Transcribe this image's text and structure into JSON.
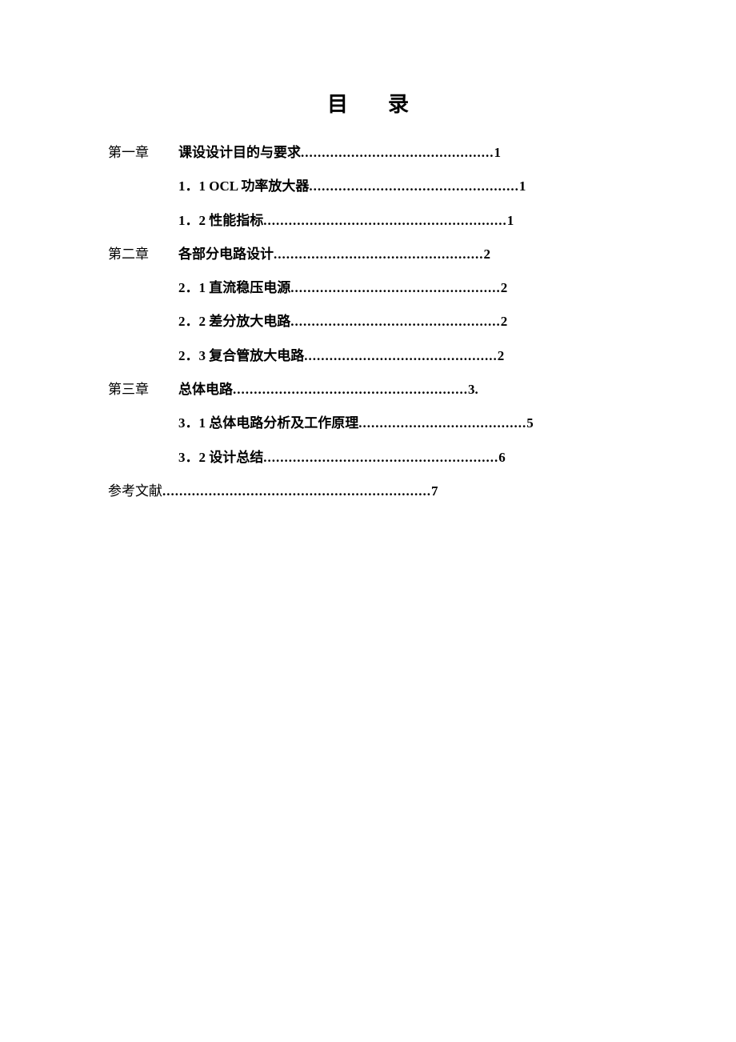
{
  "title": {
    "char1": "目",
    "char2": "录"
  },
  "entries": [
    {
      "chapter": "第一章",
      "text": "课设设计目的与要求",
      "page": "1",
      "leader_len": 46,
      "sub": false
    },
    {
      "chapter": "",
      "text": "1．1 OCL 功率放大器",
      "page": "1",
      "leader_len": 50,
      "sub": true
    },
    {
      "chapter": "",
      "text": "1．2 性能指标",
      "page": "1",
      "leader_len": 58,
      "sub": true
    },
    {
      "chapter": "第二章",
      "text": "各部分电路设计",
      "page": "2",
      "leader_len": 50,
      "sub": false
    },
    {
      "chapter": "",
      "text": "2．1 直流稳压电源",
      "page": "2",
      "leader_len": 50,
      "sub": true
    },
    {
      "chapter": "",
      "text": "2．2 差分放大电路",
      "page": "2",
      "leader_len": 50,
      "sub": true
    },
    {
      "chapter": "",
      "text": "2．3 复合管放大电路",
      "page": "2",
      "leader_len": 46,
      "sub": true
    },
    {
      "chapter": "第三章",
      "text": "总体电路",
      "page": "3.",
      "leader_len": 56,
      "sub": false
    },
    {
      "chapter": "",
      "text": "3．1 总体电路分析及工作原理",
      "page": "5",
      "leader_len": 40,
      "sub": true
    },
    {
      "chapter": "",
      "text": "3．2 设计总结",
      "page": "6",
      "leader_len": 56,
      "sub": true
    }
  ],
  "references": {
    "label": "参考文献",
    "page": "7",
    "leader_len": 64
  }
}
